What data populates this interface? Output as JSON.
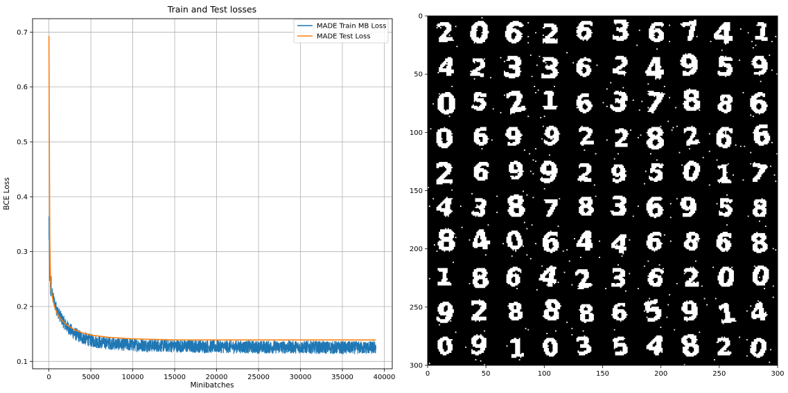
{
  "chart_data": [
    {
      "type": "line",
      "title": "Train and Test losses",
      "xlabel": "Minibatches",
      "ylabel": "BCE Loss",
      "xlim": [
        -1950,
        40950
      ],
      "ylim": [
        0.0865,
        0.7245
      ],
      "grid": true,
      "legend_position": "top-right",
      "x_ticks": [
        0,
        5000,
        10000,
        15000,
        20000,
        25000,
        30000,
        35000,
        40000
      ],
      "y_ticks": [
        0.1,
        0.2,
        0.3,
        0.4,
        0.5,
        0.6,
        0.7
      ],
      "series": [
        {
          "name": "MADE Train MB Loss",
          "color": "#1f77b4",
          "noise_amplitude": 0.012,
          "x": [
            0,
            40,
            80,
            120,
            160,
            200,
            300,
            400,
            500,
            700,
            1000,
            1500,
            2000,
            3000,
            4000,
            5000,
            6000,
            8000,
            10000,
            15000,
            20000,
            25000,
            30000,
            35000,
            39000
          ],
          "y": [
            0.355,
            0.3,
            0.27,
            0.255,
            0.245,
            0.24,
            0.23,
            0.222,
            0.215,
            0.205,
            0.192,
            0.178,
            0.166,
            0.151,
            0.143,
            0.138,
            0.135,
            0.132,
            0.13,
            0.128,
            0.127,
            0.126,
            0.126,
            0.125,
            0.125
          ]
        },
        {
          "name": "MADE Test Loss",
          "color": "#ff7f0e",
          "x": [
            0,
            50,
            100,
            150,
            200,
            300,
            400,
            500,
            700,
            1000,
            1500,
            2000,
            3000,
            4000,
            5000,
            7000,
            10000,
            15000,
            20000,
            25000,
            30000,
            35000,
            39000
          ],
          "y": [
            0.693,
            0.5,
            0.33,
            0.275,
            0.248,
            0.228,
            0.218,
            0.21,
            0.198,
            0.187,
            0.176,
            0.168,
            0.158,
            0.152,
            0.148,
            0.144,
            0.141,
            0.139,
            0.139,
            0.139,
            0.139,
            0.139,
            0.139
          ]
        }
      ]
    },
    {
      "type": "heatmap",
      "title": "",
      "xlim": [
        0,
        300
      ],
      "ylim": [
        300,
        0
      ],
      "x_ticks": [
        0,
        50,
        100,
        150,
        200,
        250,
        300
      ],
      "y_ticks": [
        0,
        50,
        100,
        150,
        200,
        250,
        300
      ],
      "colormap": "binary (black background, white pixels)",
      "grid_rows": 10,
      "grid_cols": 10,
      "digits": [
        "2",
        "0",
        "6",
        "2",
        "6",
        "3",
        "6",
        "7",
        "4",
        "1",
        "4",
        "2",
        "3",
        "3",
        "6",
        "2",
        "4",
        "9",
        "5",
        "9",
        "0",
        "5",
        "2",
        "1",
        "6",
        "3",
        "7",
        "8",
        "8",
        "6",
        "0",
        "6",
        "9",
        "9",
        "2",
        "2",
        "8",
        "2",
        "6",
        "6",
        "2",
        "6",
        "9",
        "9",
        "2",
        "9",
        "5",
        "0",
        "1",
        "7",
        "4",
        "3",
        "8",
        "7",
        "8",
        "3",
        "6",
        "9",
        "5",
        "8",
        "8",
        "4",
        "0",
        "6",
        "4",
        "4",
        "6",
        "8",
        "6",
        "8",
        "1",
        "8",
        "6",
        "4",
        "2",
        "3",
        "6",
        "2",
        "0",
        "0",
        "9",
        "2",
        "8",
        "8",
        "8",
        "6",
        "5",
        "9",
        "1",
        "4",
        "0",
        "9",
        "1",
        "0",
        "3",
        "5",
        "4",
        "8",
        "2",
        "0"
      ]
    }
  ]
}
